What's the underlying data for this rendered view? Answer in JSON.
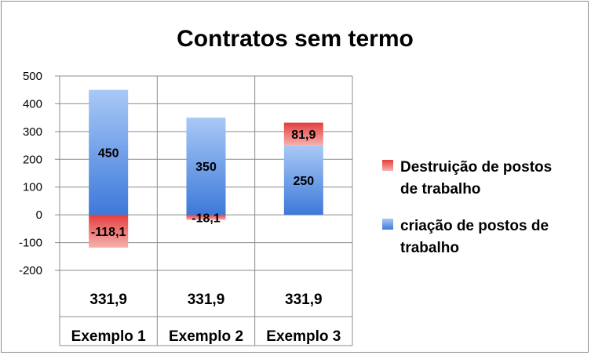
{
  "chart_data": {
    "type": "bar",
    "stacked": true,
    "title": "Contratos sem termo",
    "categories": [
      "Exemplo 1",
      "Exemplo 2",
      "Exemplo 3"
    ],
    "series": [
      {
        "name": "Destruição de postos de trabalho",
        "legend_lines": [
          "Destruição de postos",
          "de trabalho"
        ],
        "values": [
          -118.1,
          -18.1,
          81.9
        ],
        "labels": [
          "-118,1",
          "-18,1",
          "81,9"
        ],
        "color": "#e8605f"
      },
      {
        "name": "criação de postos de trabalho",
        "legend_lines": [
          "criação de postos de",
          "trabalho"
        ],
        "values": [
          450,
          350,
          250
        ],
        "labels": [
          "450",
          "350",
          "250"
        ],
        "color": "#4a8fe2"
      }
    ],
    "table_row": [
      "331,9",
      "331,9",
      "331,9"
    ],
    "ylim": [
      -200,
      500
    ],
    "yticks": [
      "500",
      "400",
      "300",
      "200",
      "100",
      "0",
      "-100",
      "-200"
    ],
    "grid": true,
    "legend_position": "right"
  }
}
